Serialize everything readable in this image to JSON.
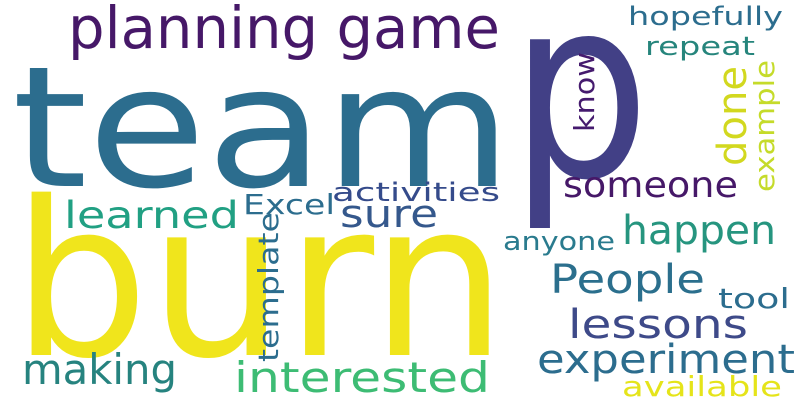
{
  "words": {
    "team": {
      "text": "team",
      "color": "#2c6d8e"
    },
    "p": {
      "text": "p",
      "color": "#424086"
    },
    "burn": {
      "text": "burn",
      "color": "#f0e51c"
    },
    "planning": {
      "text": "planning game",
      "color": "#461868"
    },
    "hopefully": {
      "text": "hopefully",
      "color": "#2c6d8e"
    },
    "repeat": {
      "text": "repeat",
      "color": "#26857c"
    },
    "know": {
      "text": "know",
      "color": "#451a6e"
    },
    "done": {
      "text": "done",
      "color": "#d2d81f"
    },
    "example": {
      "text": "example",
      "color": "#c5db2a"
    },
    "someone": {
      "text": "someone",
      "color": "#461868"
    },
    "learned": {
      "text": "learned",
      "color": "#21a083"
    },
    "excel": {
      "text": "Excel",
      "color": "#2c6d8e"
    },
    "activities": {
      "text": "activities",
      "color": "#354b8b"
    },
    "sure": {
      "text": "sure",
      "color": "#35588c"
    },
    "happen": {
      "text": "happen",
      "color": "#26957f"
    },
    "anyone": {
      "text": "anyone",
      "color": "#2a7b8e"
    },
    "template": {
      "text": "template",
      "color": "#2c6d8e"
    },
    "people": {
      "text": "People",
      "color": "#2b6f8d"
    },
    "tool": {
      "text": "tool",
      "color": "#2c6d8e"
    },
    "lessons": {
      "text": "lessons",
      "color": "#3e4a89"
    },
    "experiment": {
      "text": "experiment",
      "color": "#2c6d8e"
    },
    "making": {
      "text": "making",
      "color": "#26837f"
    },
    "interested": {
      "text": "interested",
      "color": "#3dbc74"
    },
    "available": {
      "text": "available",
      "color": "#e5e41a"
    }
  }
}
